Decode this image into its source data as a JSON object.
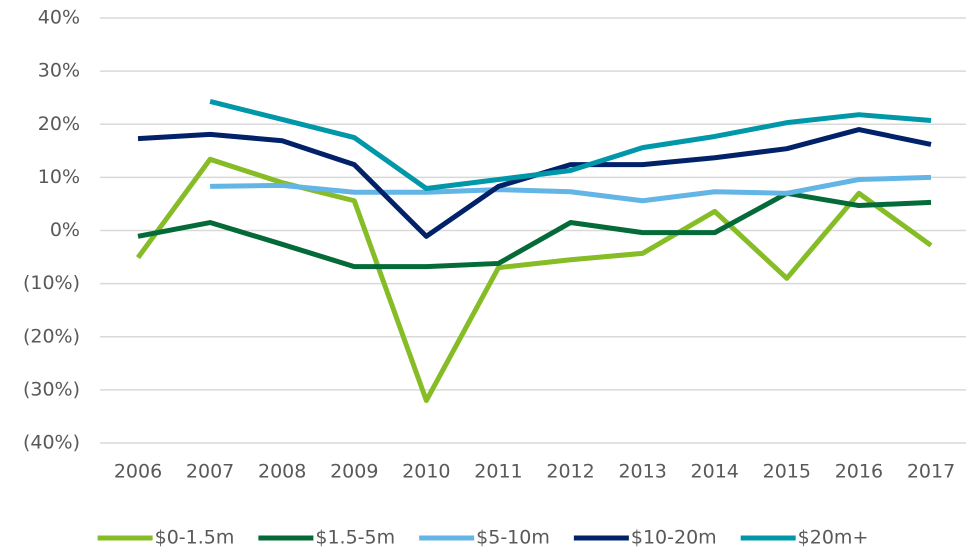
{
  "chart_data": {
    "type": "line",
    "categories": [
      "2006",
      "2007",
      "2008",
      "2009",
      "2010",
      "2011",
      "2012",
      "2013",
      "2014",
      "2015",
      "2016",
      "2017"
    ],
    "series": [
      {
        "name": "$0-1.5m",
        "color": "#86bc25",
        "values": [
          -5.1,
          13.4,
          9,
          5.6,
          -32,
          -7,
          -5.5,
          -4.3,
          3.6,
          -9,
          7,
          -2.8
        ]
      },
      {
        "name": "$1.5-5m",
        "color": "#046a38",
        "values": [
          -1.1,
          1.5,
          -2.6,
          -6.8,
          -6.8,
          -6.2,
          1.5,
          -0.4,
          -0.4,
          7,
          4.7,
          5.3
        ]
      },
      {
        "name": "$5-10m",
        "color": "#62b5e5",
        "values": [
          null,
          8.3,
          8.5,
          7.2,
          7.2,
          7.7,
          7.3,
          5.6,
          7.3,
          7,
          9.6,
          10
        ]
      },
      {
        "name": "$10-20m",
        "color": "#012169",
        "values": [
          17.3,
          18.1,
          16.9,
          12.4,
          -1.1,
          8.3,
          12.4,
          12.4,
          13.7,
          15.4,
          19,
          16.2
        ]
      },
      {
        "name": "$20m+",
        "color": "#0097a9",
        "values": [
          null,
          24.3,
          20.9,
          17.5,
          7.9,
          9.6,
          11.3,
          15.6,
          17.7,
          20.3,
          21.8,
          20.7
        ]
      }
    ],
    "ylim": [
      -40,
      40
    ],
    "yticks": [
      {
        "value": -40,
        "label": "(40%)"
      },
      {
        "value": -30,
        "label": "(30%)"
      },
      {
        "value": -20,
        "label": "(20%)"
      },
      {
        "value": -10,
        "label": "(10%)"
      },
      {
        "value": 0,
        "label": "0%"
      },
      {
        "value": 10,
        "label": "10%"
      },
      {
        "value": 20,
        "label": "20%"
      },
      {
        "value": 30,
        "label": "30%"
      },
      {
        "value": 40,
        "label": "40%"
      }
    ],
    "grid": true,
    "legend": "bottom"
  }
}
